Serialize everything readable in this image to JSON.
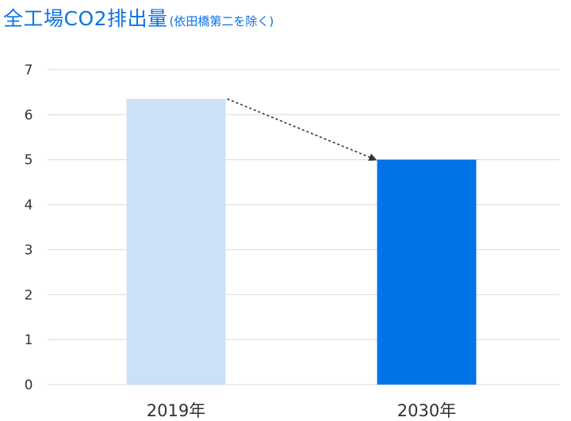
{
  "chart_data": {
    "type": "bar",
    "title": "全工場CO2排出量",
    "subtitle": "(依田橋第二を除く)",
    "categories": [
      "2019年",
      "2030年"
    ],
    "values": [
      6.35,
      5.0
    ],
    "ylim": [
      0,
      7
    ],
    "y_ticks": [
      "0",
      "1",
      "2",
      "3",
      "4",
      "5",
      "6",
      "7"
    ],
    "grid": true,
    "legend": "none",
    "bar_colors": [
      "#cde1f6",
      "#0073e6"
    ],
    "annotation": "dotted-arrow-from-2019-to-2030"
  },
  "colors": {
    "title": "#0a72e6",
    "grid": "#d9d9d9",
    "axis_text": "#333333",
    "arrow": "#333333"
  }
}
